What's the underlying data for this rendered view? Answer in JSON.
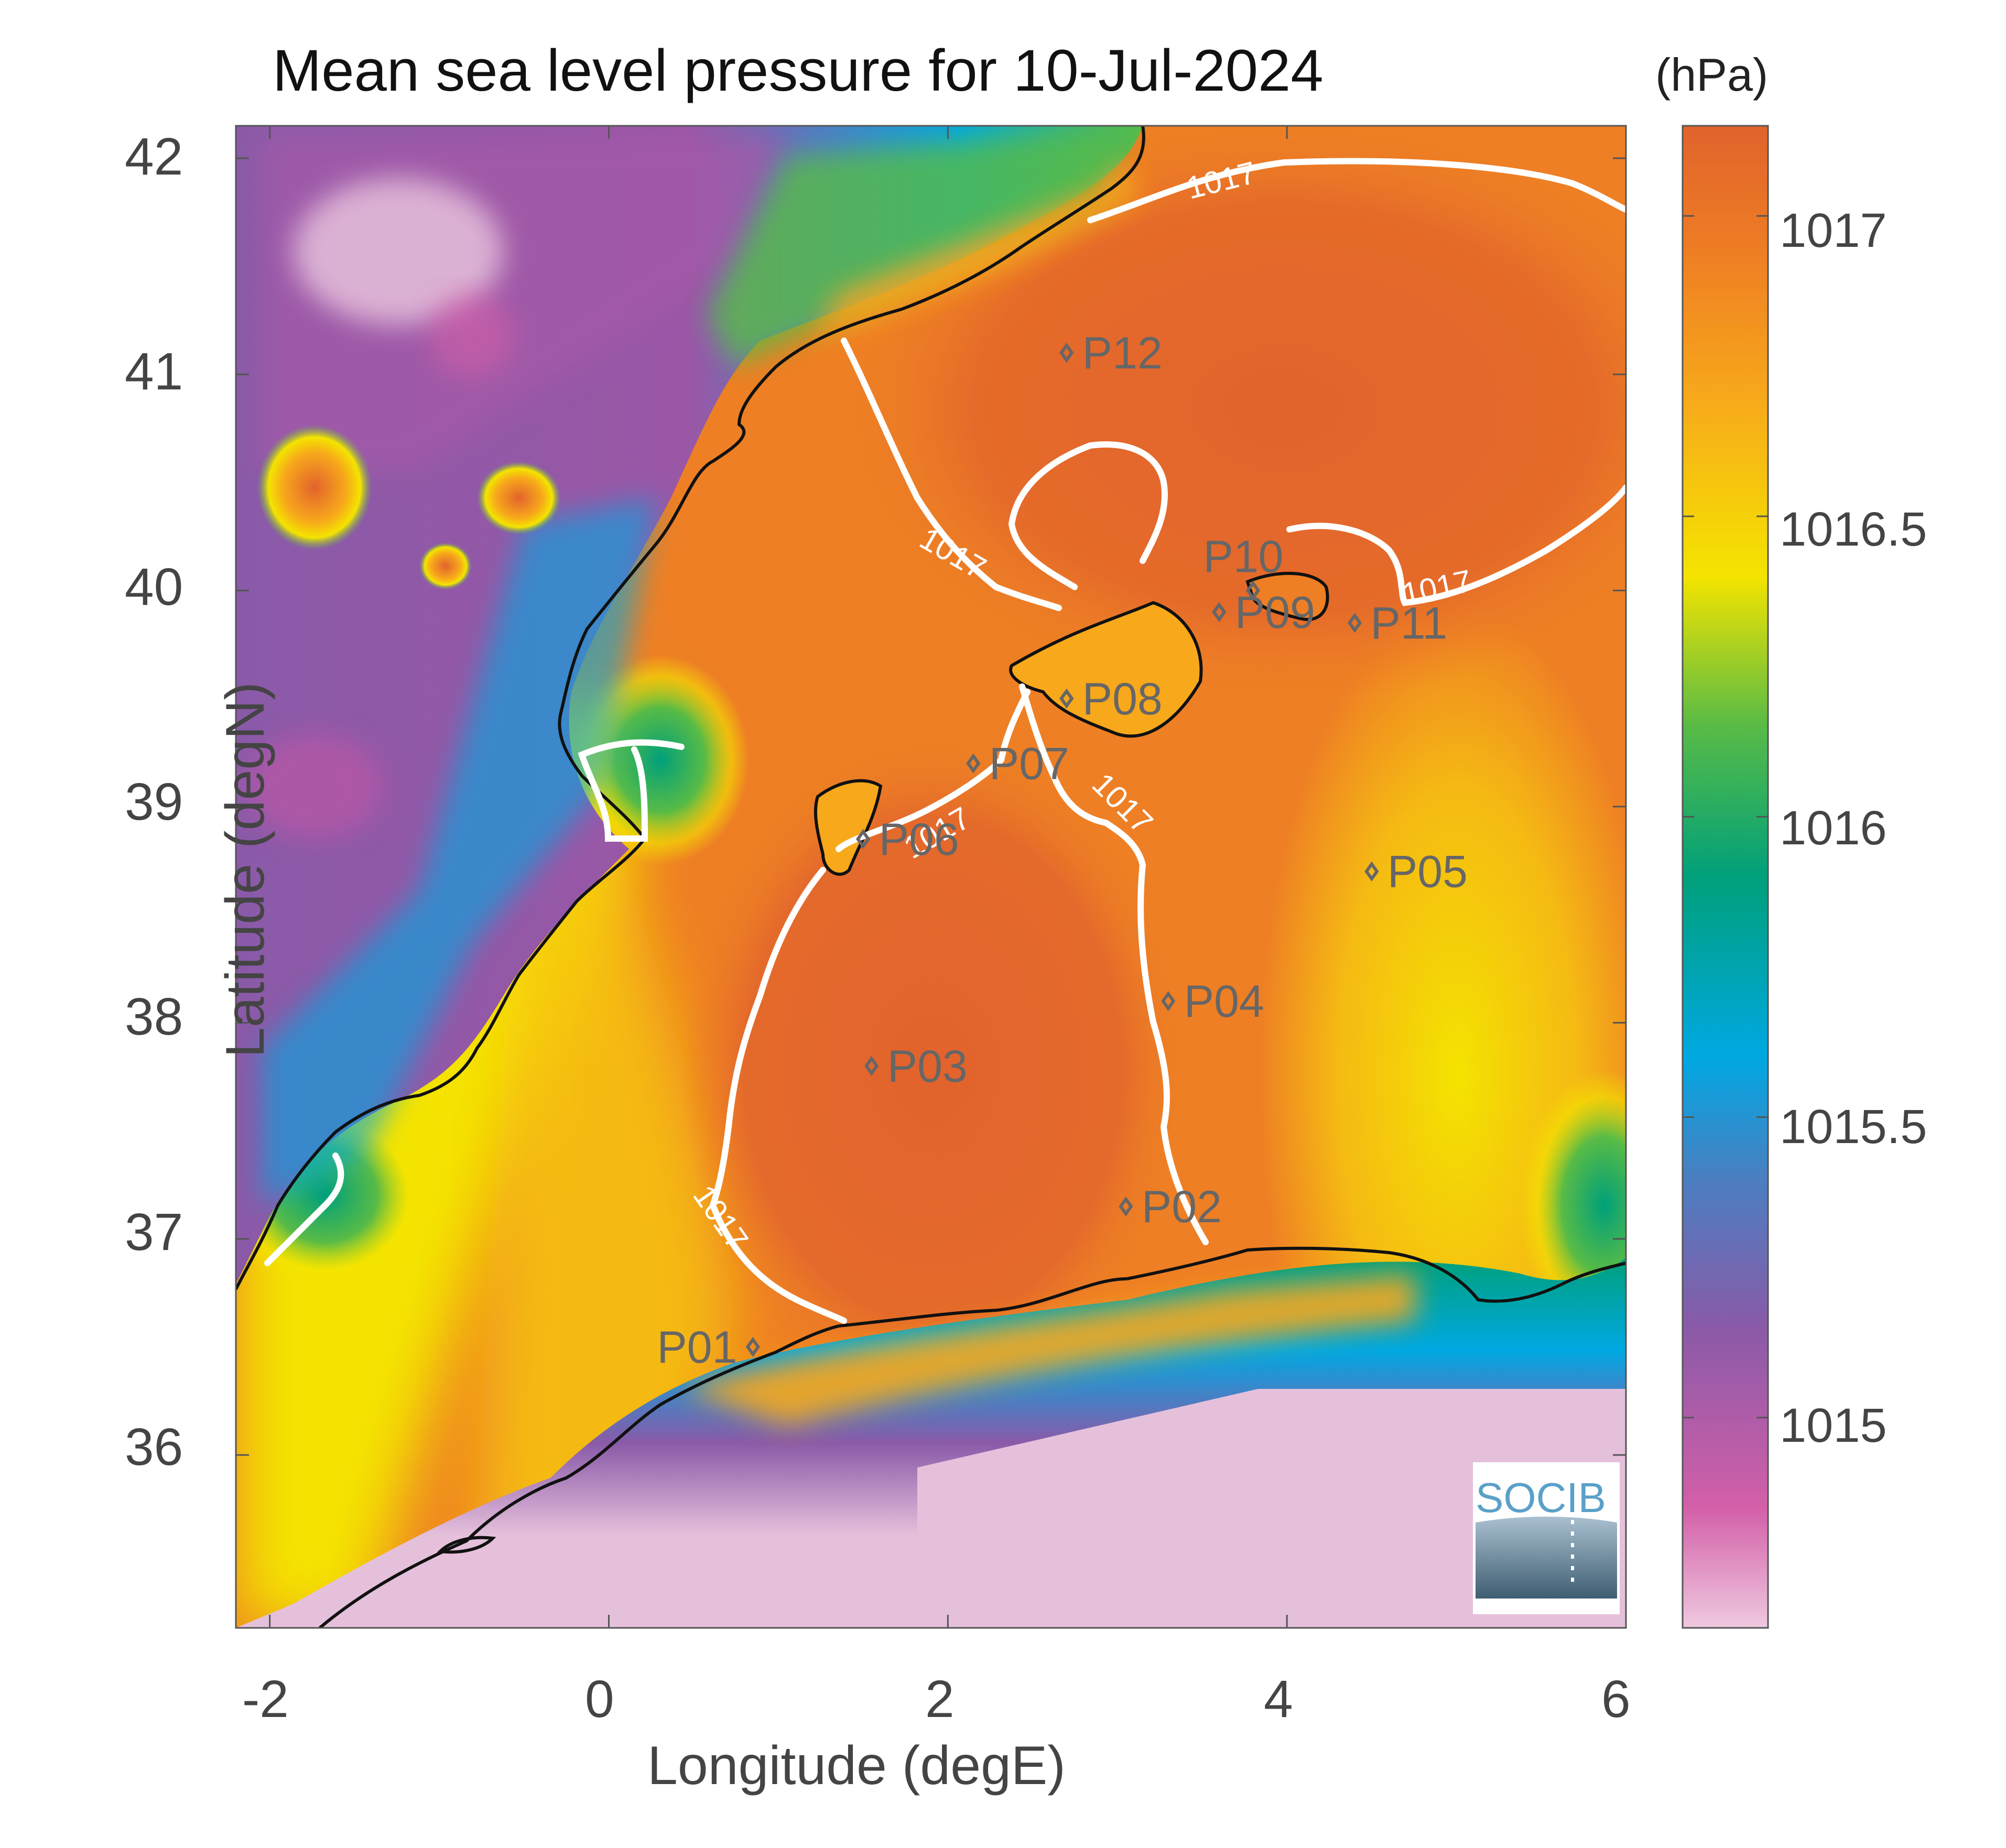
{
  "title": "Mean sea level pressure for 10-Jul-2024",
  "units": "(hPa)",
  "xlabel": "Longitude (degE)",
  "ylabel": "Latitude (degN)",
  "logo_text": "SOCIB",
  "x_ticks": [
    "-2",
    "0",
    "2",
    "4",
    "6"
  ],
  "y_ticks": [
    "42",
    "41",
    "40",
    "39",
    "38",
    "37",
    "36"
  ],
  "colorbar_ticks": [
    "1017",
    "1016.5",
    "1016",
    "1015.5",
    "1015"
  ],
  "contour_label": "1017",
  "colors": {
    "contour": "#ffffff",
    "coastline": "#111111",
    "marker": "#666666",
    "logo": "#5aa0c8"
  },
  "chart_data": {
    "type": "heatmap",
    "title": "Mean sea level pressure for 10-Jul-2024",
    "xlabel": "Longitude (degE)",
    "ylabel": "Latitude (degN)",
    "xlim": [
      -2.2,
      6.0
    ],
    "ylim": [
      35.2,
      42.15
    ],
    "clim": [
      1014.65,
      1017.15
    ],
    "colorbar_label": "(hPa)",
    "contour_levels": [
      1017
    ],
    "stations": [
      {
        "name": "P01",
        "lon": 0.85,
        "lat": 36.5
      },
      {
        "name": "P02",
        "lon": 3.05,
        "lat": 37.15
      },
      {
        "name": "P03",
        "lon": 1.55,
        "lat": 37.8
      },
      {
        "name": "P04",
        "lon": 3.3,
        "lat": 38.1
      },
      {
        "name": "P05",
        "lon": 4.5,
        "lat": 38.7
      },
      {
        "name": "P06",
        "lon": 1.5,
        "lat": 38.85
      },
      {
        "name": "P07",
        "lon": 2.15,
        "lat": 39.2
      },
      {
        "name": "P08",
        "lon": 2.7,
        "lat": 39.5
      },
      {
        "name": "P09",
        "lon": 3.6,
        "lat": 39.9
      },
      {
        "name": "P10",
        "lon": 3.8,
        "lat": 40.0
      },
      {
        "name": "P11",
        "lon": 4.4,
        "lat": 39.85
      },
      {
        "name": "P12",
        "lon": 2.7,
        "lat": 41.1
      }
    ]
  }
}
